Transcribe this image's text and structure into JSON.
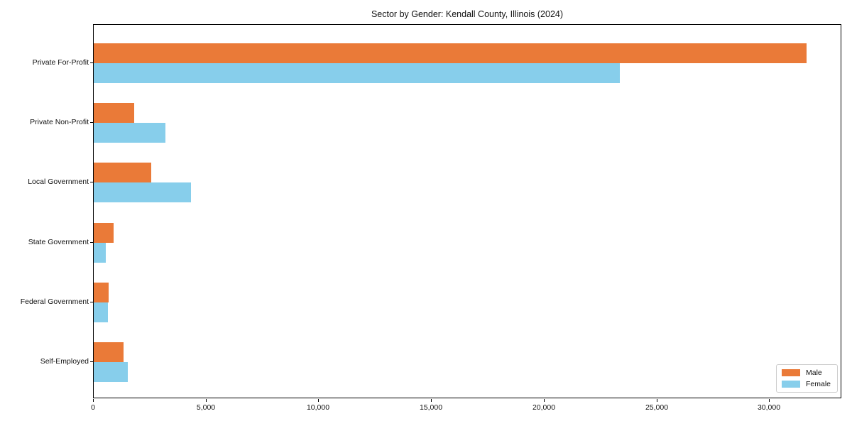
{
  "chart_data": {
    "type": "bar",
    "orientation": "horizontal",
    "title": "Sector by Gender: Kendall County, Illinois (2024)",
    "categories": [
      "Private For-Profit",
      "Private Non-Profit",
      "Local Government",
      "State Government",
      "Federal Government",
      "Self-Employed"
    ],
    "series": [
      {
        "name": "Male",
        "color": "#EA7A38",
        "values": [
          31640,
          1780,
          2550,
          880,
          660,
          1320
        ]
      },
      {
        "name": "Female",
        "color": "#87CEEB",
        "values": [
          23350,
          3190,
          4320,
          540,
          630,
          1510
        ]
      }
    ],
    "xlabel": "",
    "ylabel": "",
    "x_ticks": [
      0,
      5000,
      10000,
      15000,
      20000,
      25000,
      30000
    ],
    "x_tick_labels": [
      "0",
      "5,000",
      "10,000",
      "15,000",
      "20,000",
      "25,000",
      "30,000"
    ],
    "xlim": [
      0,
      33200
    ],
    "grid": false,
    "legend": {
      "position": "lower right"
    }
  }
}
